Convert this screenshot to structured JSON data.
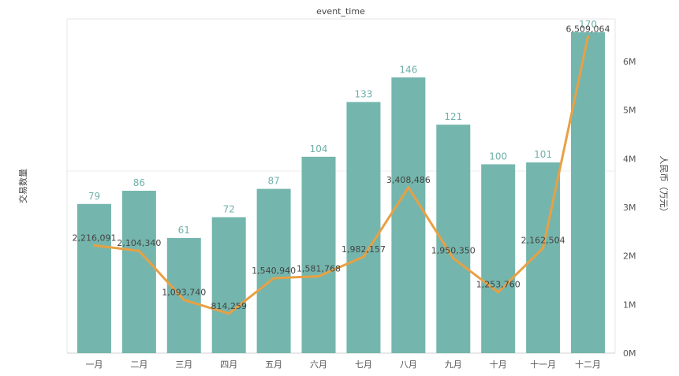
{
  "chart_data": {
    "type": "bar+line",
    "title": "event_time",
    "categories": [
      "一月",
      "二月",
      "三月",
      "四月",
      "五月",
      "六月",
      "七月",
      "八月",
      "九月",
      "十月",
      "十一月",
      "十二月"
    ],
    "series": [
      {
        "name": "交易数量",
        "type": "bar",
        "axis": "left",
        "values": [
          79,
          86,
          61,
          72,
          87,
          104,
          133,
          146,
          121,
          100,
          101,
          170
        ],
        "labels": [
          "79",
          "86",
          "61",
          "72",
          "87",
          "104",
          "133",
          "146",
          "121",
          "100",
          "101",
          "170"
        ]
      },
      {
        "name": "人民币（万元）",
        "type": "line",
        "axis": "right",
        "values": [
          2216091,
          2104340,
          1093740,
          814259,
          1540940,
          1581768,
          1982157,
          3408486,
          1950350,
          1253760,
          2162504,
          6509064
        ],
        "labels": [
          "2,216,091",
          "2,104,340",
          "1,093,740",
          "814,259",
          "1,540,940",
          "1,581,768",
          "1,982,157",
          "3,408,486",
          "1,950,350",
          "1,253,760",
          "2,162,504",
          "6,509,064"
        ]
      }
    ],
    "y_left": {
      "label": "交易数量",
      "range": [
        0,
        177
      ]
    },
    "y_right": {
      "label": "人民币（万元）",
      "range": [
        0,
        6500000
      ],
      "ticks": [
        0,
        1000000,
        2000000,
        3000000,
        4000000,
        5000000,
        6000000
      ],
      "tick_labels": [
        "0M",
        "1M",
        "2M",
        "3M",
        "4M",
        "5M",
        "6M"
      ]
    },
    "grid": false,
    "legend": "none",
    "colors": {
      "bar": "#74b6ad",
      "line": "#e8a044",
      "bar_label": "#6fb1a9"
    }
  }
}
